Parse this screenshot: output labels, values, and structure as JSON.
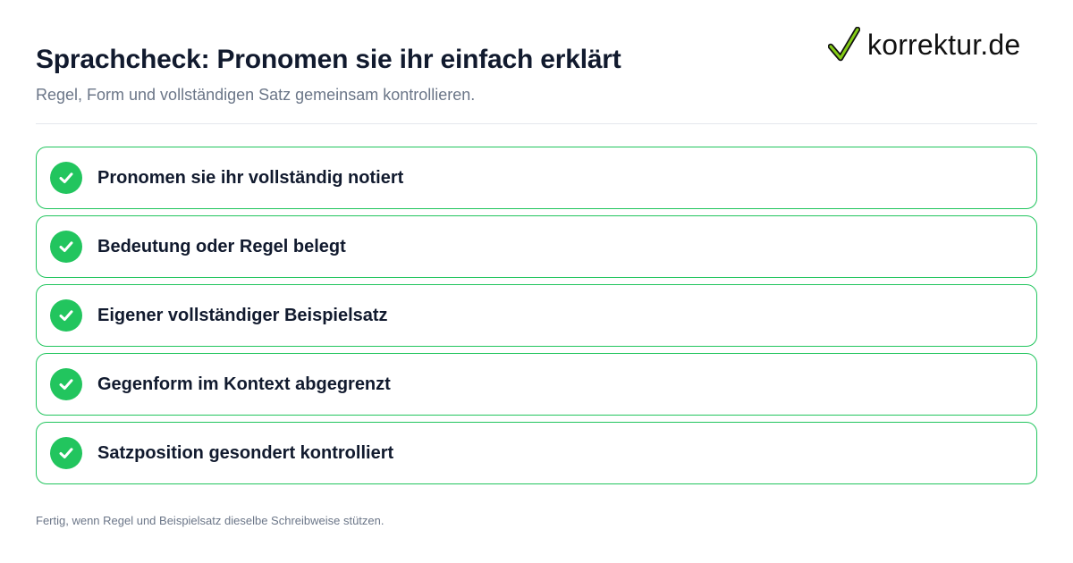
{
  "header": {
    "title": "Sprachcheck: Pronomen sie ihr einfach erklärt",
    "subtitle": "Regel, Form und vollständigen Satz gemeinsam kontrollieren."
  },
  "logo": {
    "icon": "checkmark-icon",
    "text": "korrektur.de"
  },
  "checklist": {
    "icon": "check-circle-icon",
    "items": [
      {
        "label": "Pronomen sie ihr vollständig notiert",
        "checked": true
      },
      {
        "label": "Bedeutung oder Regel belegt",
        "checked": true
      },
      {
        "label": "Eigener vollständiger Beispielsatz",
        "checked": true
      },
      {
        "label": "Gegenform im Kontext abgegrenzt",
        "checked": true
      },
      {
        "label": "Satzposition gesondert kontrolliert",
        "checked": true
      }
    ]
  },
  "footer": {
    "note": "Fertig, wenn Regel und Beispielsatz dieselbe Schreibweise stützen."
  },
  "colors": {
    "accent": "#22c55e",
    "title": "#111a2e",
    "muted": "#6b7688"
  }
}
